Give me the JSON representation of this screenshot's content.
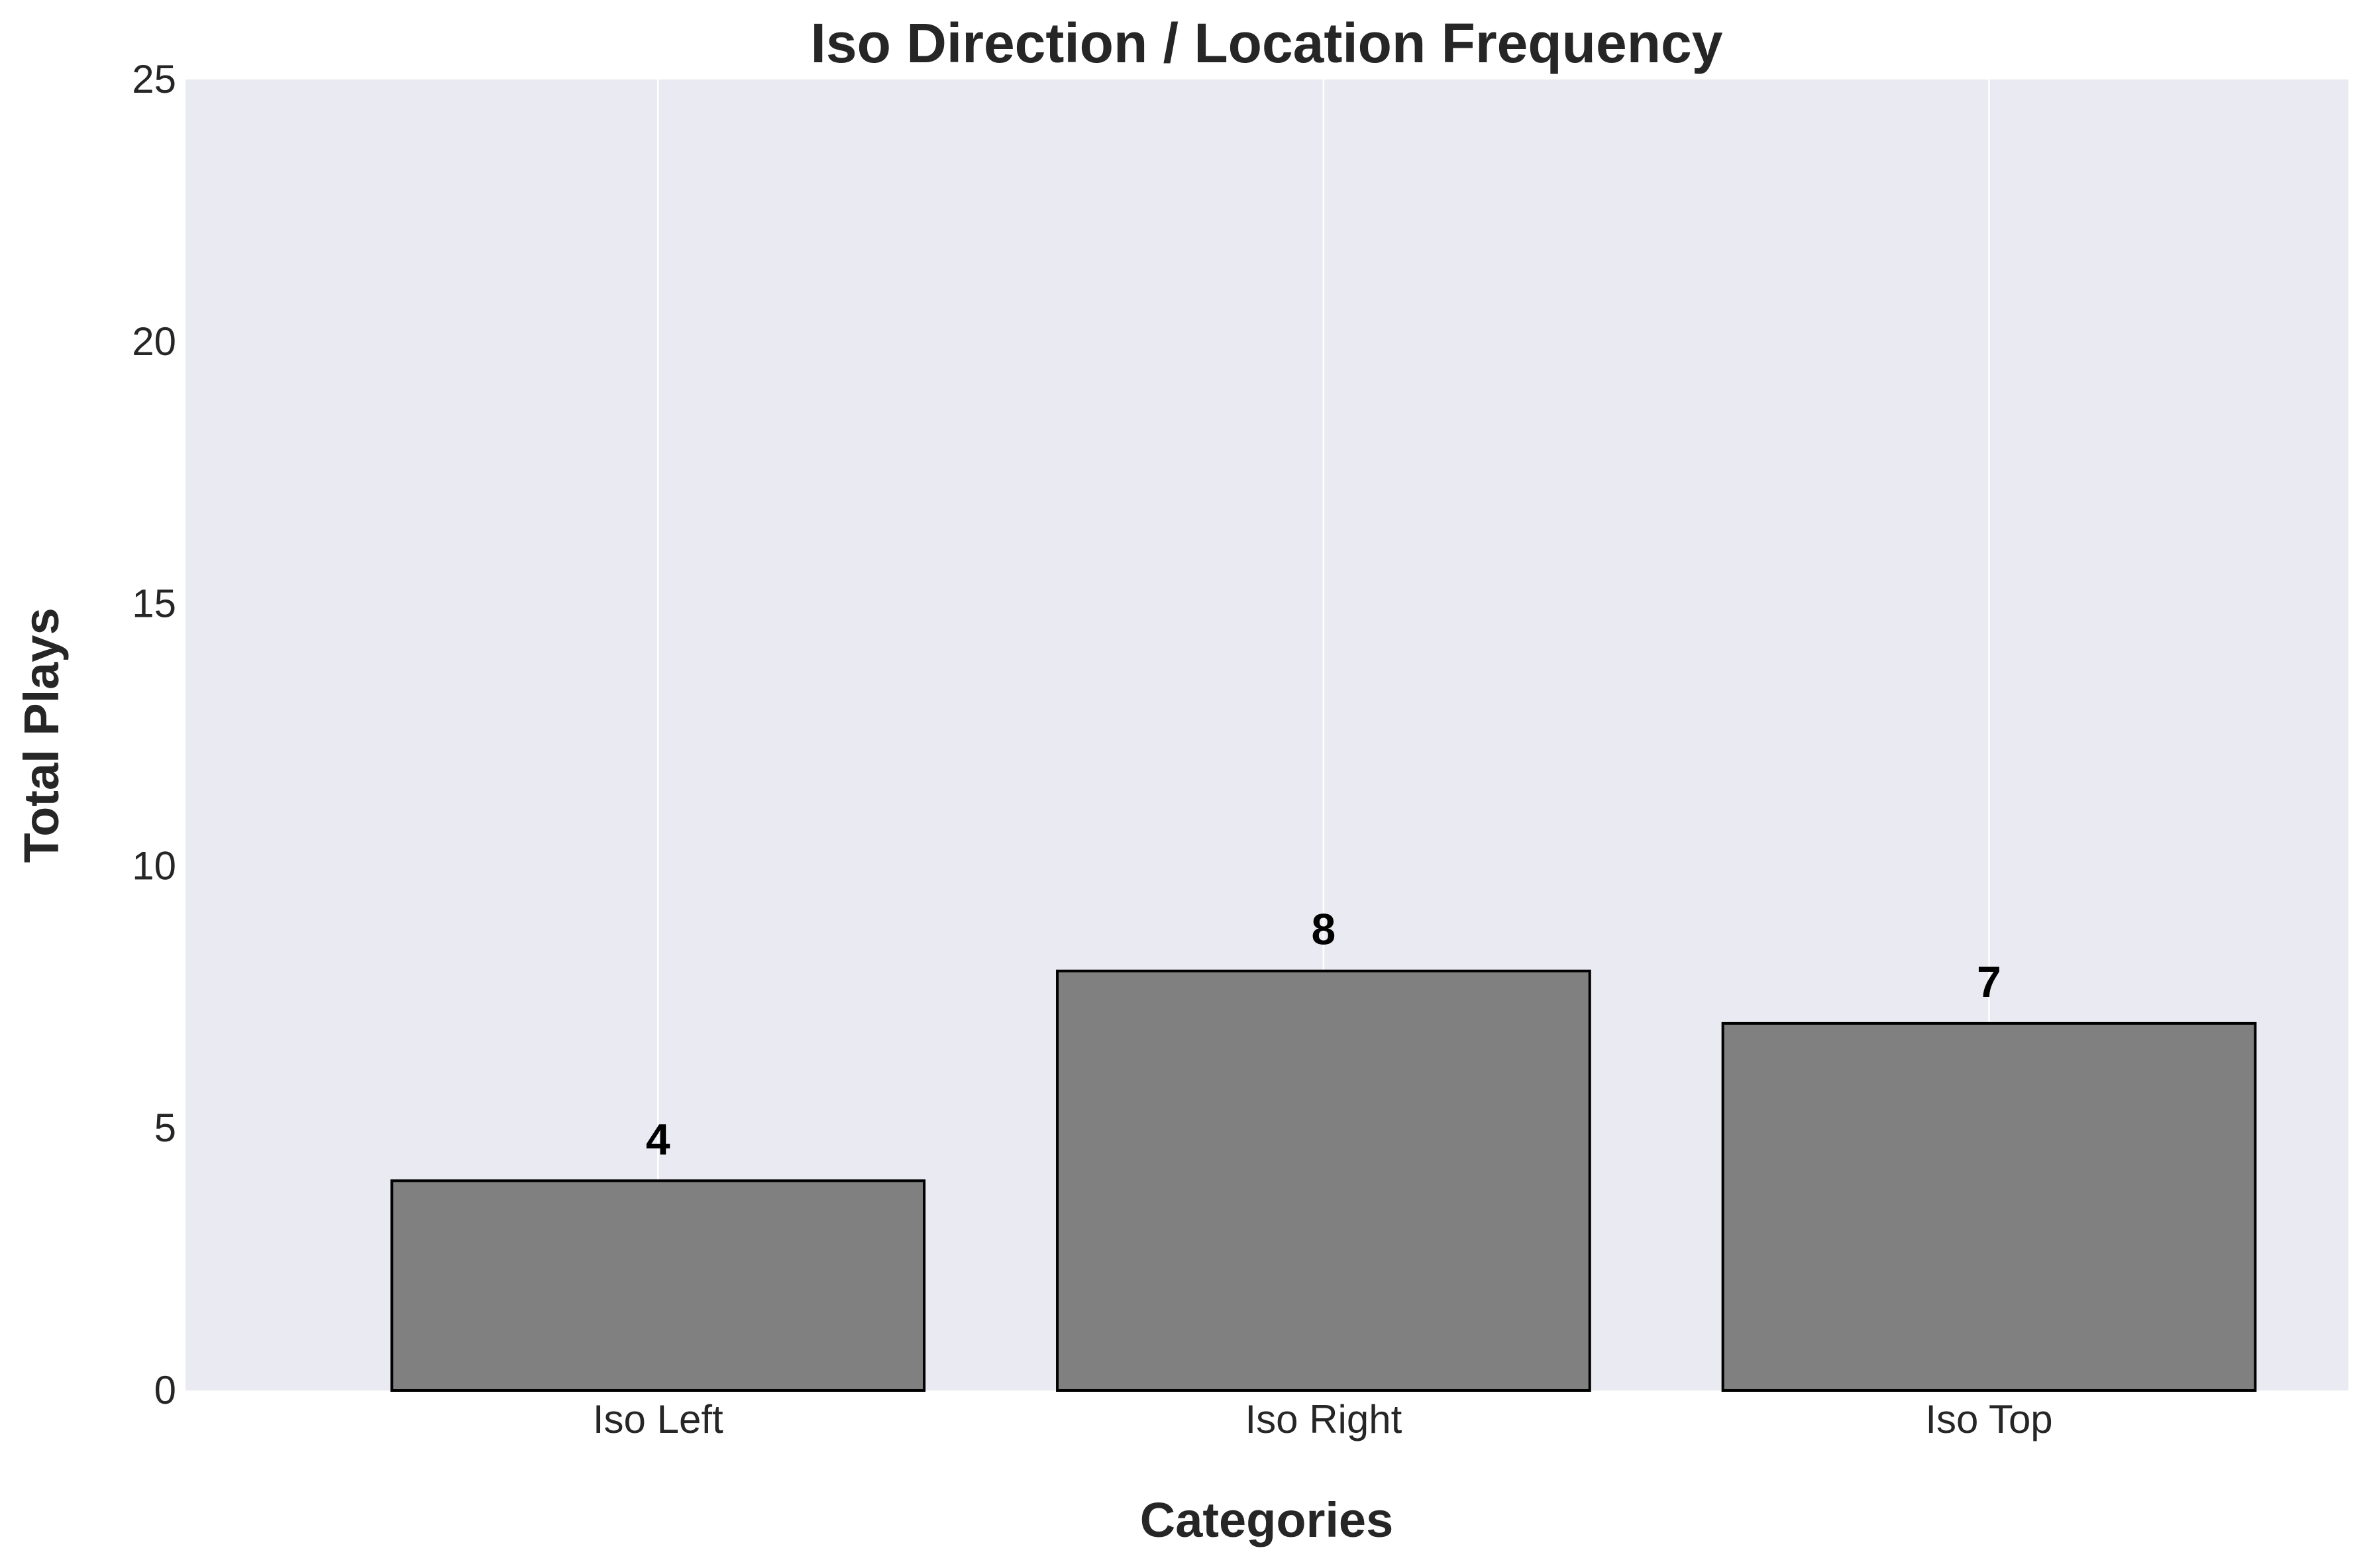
{
  "chart_data": {
    "type": "bar",
    "title": "Iso Direction / Location Frequency",
    "xlabel": "Categories",
    "ylabel": "Total Plays",
    "categories": [
      "Iso Left",
      "Iso Right",
      "Iso Top"
    ],
    "values": [
      4,
      8,
      7
    ],
    "data_labels": [
      "4",
      "8",
      "7"
    ],
    "ylim": [
      0,
      25
    ],
    "yticks": [
      0,
      5,
      10,
      15,
      20,
      25
    ],
    "grid": true,
    "legend": "none"
  },
  "colors": {
    "plot_background": "#EAEAF2",
    "grid": "#FFFFFF",
    "bar_fill": "#808080",
    "bar_edge": "#000000",
    "text": "#262626"
  }
}
